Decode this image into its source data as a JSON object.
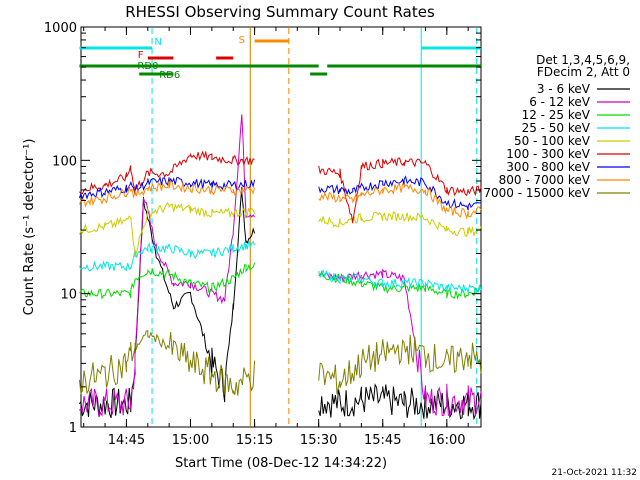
{
  "chart_data": {
    "type": "line",
    "title": "RHESSI Observing Summary Count Rates",
    "xlabel": "Start Time (08-Dec-12 14:34:22)",
    "ylabel": "Count Rate (s⁻¹ detector⁻¹)",
    "y_scale": "log",
    "ylim": [
      1,
      1000
    ],
    "xlim": [
      "14:34:22",
      "16:08"
    ],
    "x_ticks": [
      "14:45",
      "15:00",
      "15:15",
      "15:30",
      "15:45",
      "16:00"
    ],
    "y_ticks": [
      "1",
      "10",
      "100",
      "1000"
    ],
    "legend_header": [
      "Det 1,3,4,5,6,9,",
      "FDecim 2, Att 0"
    ],
    "legend_position": "right",
    "footer_timestamp": "21-Oct-2021 11:32",
    "series": [
      {
        "name": "3 - 6 keV",
        "color": "#000000",
        "x": [
          "14:34",
          "14:46",
          "14:47",
          "14:49",
          "14:52",
          "14:56",
          "15:00",
          "15:05",
          "15:08",
          "15:10",
          "15:12",
          "15:13",
          "15:15",
          "15:27",
          "15:30",
          "15:35",
          "15:40",
          "15:45",
          "15:50",
          "15:55",
          "16:00",
          "16:05",
          "16:08"
        ],
        "y": [
          1.5,
          1.5,
          3,
          50,
          20,
          8,
          10,
          3,
          2,
          8,
          60,
          25,
          30,
          null,
          1.6,
          1.5,
          1.6,
          1.6,
          1.5,
          1.5,
          1.5,
          1.5,
          1.5
        ]
      },
      {
        "name": "6 - 12 keV",
        "color": "#cc00cc",
        "x": [
          "14:34",
          "14:46",
          "14:47",
          "14:49",
          "14:52",
          "14:56",
          "15:00",
          "15:05",
          "15:08",
          "15:10",
          "15:12",
          "15:13",
          "15:15",
          "15:27",
          "15:30",
          "15:35",
          "15:40",
          "15:45",
          "15:50",
          "15:55",
          "16:00",
          "16:05",
          "16:08"
        ],
        "y": [
          1.5,
          1.5,
          3,
          55,
          22,
          12,
          12,
          10,
          9,
          30,
          220,
          40,
          40,
          null,
          14,
          13,
          14,
          14,
          13,
          1.6,
          1.6,
          1.6,
          1.6
        ]
      },
      {
        "name": "12 - 25 keV",
        "color": "#00dd00",
        "x": [
          "14:34",
          "14:46",
          "14:47",
          "14:50",
          "14:55",
          "15:00",
          "15:05",
          "15:10",
          "15:13",
          "15:15",
          "15:27",
          "15:30",
          "15:35",
          "15:40",
          "15:45",
          "15:50",
          "15:55",
          "16:00",
          "16:05",
          "16:08"
        ],
        "y": [
          10,
          10,
          13,
          15,
          14,
          12,
          11,
          13,
          16,
          16,
          null,
          14,
          13,
          12,
          11,
          11,
          11,
          10,
          10,
          11
        ]
      },
      {
        "name": "25 - 50 keV",
        "color": "#00e5e5",
        "x": [
          "14:34",
          "14:46",
          "14:47",
          "14:50",
          "14:55",
          "15:00",
          "15:05",
          "15:10",
          "15:13",
          "15:15",
          "15:27",
          "15:30",
          "15:35",
          "15:40",
          "15:45",
          "15:50",
          "15:55",
          "16:00",
          "16:05",
          "16:08"
        ],
        "y": [
          16,
          16,
          20,
          22,
          22,
          20,
          20,
          22,
          23,
          23,
          null,
          14,
          13,
          13,
          12,
          12,
          12,
          11,
          11,
          11
        ]
      },
      {
        "name": "50 - 100 keV",
        "color": "#cccc00",
        "x": [
          "14:34",
          "14:40",
          "14:45",
          "14:46",
          "14:47",
          "14:50",
          "14:55",
          "15:00",
          "15:05",
          "15:10",
          "15:15",
          "15:27",
          "15:30",
          "15:35",
          "15:38",
          "15:40",
          "15:45",
          "15:50",
          "15:55",
          "16:00",
          "16:05",
          "16:08"
        ],
        "y": [
          30,
          32,
          35,
          40,
          20,
          40,
          45,
          43,
          40,
          40,
          42,
          null,
          36,
          34,
          36,
          37,
          38,
          38,
          37,
          30,
          29,
          30
        ]
      },
      {
        "name": "100 - 300 keV",
        "color": "#dd0000",
        "x": [
          "14:34",
          "14:40",
          "14:45",
          "14:46",
          "14:47",
          "14:50",
          "14:55",
          "15:00",
          "15:05",
          "15:10",
          "15:15",
          "15:27",
          "15:30",
          "15:35",
          "15:38",
          "15:40",
          "15:45",
          "15:50",
          "15:55",
          "16:00",
          "16:05",
          "16:08"
        ],
        "y": [
          60,
          65,
          75,
          90,
          60,
          80,
          80,
          110,
          105,
          100,
          100,
          null,
          85,
          80,
          35,
          90,
          95,
          97,
          95,
          60,
          58,
          60
        ]
      },
      {
        "name": "300 - 800 keV",
        "color": "#0000ee",
        "x": [
          "14:34",
          "14:40",
          "14:45",
          "14:46",
          "14:47",
          "14:50",
          "14:55",
          "15:00",
          "15:05",
          "15:10",
          "15:15",
          "15:27",
          "15:30",
          "15:35",
          "15:38",
          "15:40",
          "15:45",
          "15:50",
          "15:55",
          "16:00",
          "16:05",
          "16:08"
        ],
        "y": [
          55,
          58,
          62,
          65,
          60,
          68,
          70,
          68,
          65,
          65,
          67,
          null,
          62,
          60,
          58,
          62,
          68,
          70,
          68,
          48,
          45,
          46
        ]
      },
      {
        "name": "800 - 7000 keV",
        "color": "#ff8800",
        "x": [
          "14:34",
          "14:40",
          "14:45",
          "14:46",
          "14:47",
          "14:50",
          "14:55",
          "15:00",
          "15:05",
          "15:10",
          "15:15",
          "15:27",
          "15:30",
          "15:35",
          "15:38",
          "15:40",
          "15:45",
          "15:50",
          "15:55",
          "16:00",
          "16:05",
          "16:08"
        ],
        "y": [
          48,
          52,
          58,
          62,
          55,
          62,
          65,
          62,
          60,
          60,
          60,
          null,
          54,
          52,
          50,
          55,
          60,
          62,
          60,
          42,
          40,
          42
        ]
      },
      {
        "name": "7000 - 15000 keV",
        "color": "#808000",
        "x": [
          "14:34",
          "14:40",
          "14:45",
          "14:46",
          "14:47",
          "14:50",
          "14:55",
          "15:00",
          "15:05",
          "15:10",
          "15:15",
          "15:27",
          "15:30",
          "15:35",
          "15:40",
          "15:45",
          "15:50",
          "15:55",
          "16:00",
          "16:05",
          "16:08"
        ],
        "y": [
          2.2,
          2.5,
          3,
          3.5,
          4,
          5,
          4,
          3,
          2.5,
          2,
          2.5,
          null,
          2.5,
          2.2,
          3,
          3.5,
          4,
          3.5,
          3,
          3.5,
          3
        ]
      }
    ],
    "flag_bars": [
      {
        "label": "N",
        "color": "#00e5e5",
        "segments": [
          [
            "14:34",
            "14:51"
          ],
          [
            "15:54",
            "16:08"
          ]
        ]
      },
      {
        "label": "S",
        "color": "#ff8800",
        "segments": [
          [
            "15:15",
            "15:23"
          ]
        ]
      },
      {
        "label": "F",
        "color": "#dd0000",
        "segments": [
          [
            "14:50",
            "14:56"
          ],
          [
            "15:06",
            "15:10"
          ]
        ]
      },
      {
        "label": "RD0",
        "color": "#008800",
        "segments": [
          [
            "14:34",
            "15:30"
          ],
          [
            "15:32",
            "16:08"
          ]
        ]
      },
      {
        "label": "RD6",
        "color": "#008800",
        "segments": [
          [
            "14:48",
            "14:56"
          ],
          [
            "15:28",
            "15:32"
          ]
        ]
      }
    ],
    "vertical_markers": [
      {
        "time": "14:51",
        "color": "#00e5e5",
        "style": "dashed"
      },
      {
        "time": "15:14",
        "color": "#00e5e5",
        "style": "solid"
      },
      {
        "time": "15:14",
        "color": "#ff8800",
        "style": "solid"
      },
      {
        "time": "15:23",
        "color": "#ff8800",
        "style": "dashed"
      },
      {
        "time": "15:54",
        "color": "#00e5e5",
        "style": "solid"
      },
      {
        "time": "16:07",
        "color": "#00e5e5",
        "style": "dashed"
      }
    ]
  }
}
